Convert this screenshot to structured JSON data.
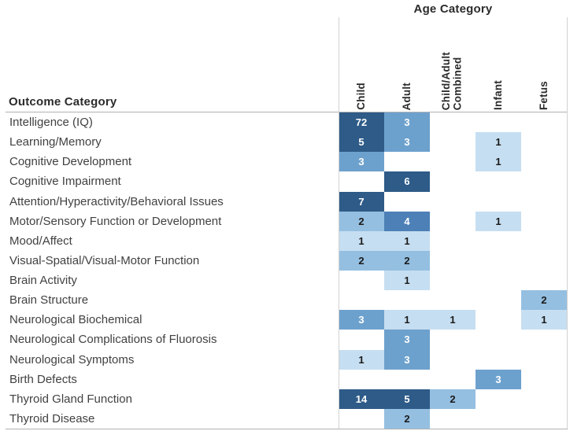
{
  "chart_data": {
    "type": "heatmap",
    "title": "Age Category",
    "row_axis_label": "Outcome Category",
    "columns": [
      "Child",
      "Adult",
      "Child/Adult\nCombined",
      "Infant",
      "Fetus"
    ],
    "rows": [
      {
        "label": "Intelligence (IQ)",
        "values": [
          72,
          3,
          null,
          null,
          null
        ]
      },
      {
        "label": "Learning/Memory",
        "values": [
          5,
          3,
          null,
          1,
          null
        ]
      },
      {
        "label": "Cognitive Development",
        "values": [
          3,
          null,
          null,
          1,
          null
        ]
      },
      {
        "label": "Cognitive Impairment",
        "values": [
          null,
          6,
          null,
          null,
          null
        ]
      },
      {
        "label": "Attention/Hyperactivity/Behavioral Issues",
        "values": [
          7,
          null,
          null,
          null,
          null
        ]
      },
      {
        "label": "Motor/Sensory Function or Development",
        "values": [
          2,
          4,
          null,
          1,
          null
        ]
      },
      {
        "label": "Mood/Affect",
        "values": [
          1,
          1,
          null,
          null,
          null
        ]
      },
      {
        "label": "Visual-Spatial/Visual-Motor Function",
        "values": [
          2,
          2,
          null,
          null,
          null
        ]
      },
      {
        "label": "Brain Activity",
        "values": [
          null,
          1,
          null,
          null,
          null
        ]
      },
      {
        "label": "Brain Structure",
        "values": [
          null,
          null,
          null,
          null,
          2
        ]
      },
      {
        "label": "Neurological Biochemical",
        "values": [
          3,
          1,
          1,
          null,
          1
        ]
      },
      {
        "label": "Neurological Complications of Fluorosis",
        "values": [
          null,
          3,
          null,
          null,
          null
        ]
      },
      {
        "label": "Neurological Symptoms",
        "values": [
          1,
          3,
          null,
          null,
          null
        ]
      },
      {
        "label": "Birth Defects",
        "values": [
          null,
          null,
          null,
          3,
          null
        ]
      },
      {
        "label": "Thyroid Gland Function",
        "values": [
          14,
          5,
          2,
          null,
          null
        ]
      },
      {
        "label": "Thyroid Disease",
        "values": [
          null,
          2,
          null,
          null,
          null
        ]
      }
    ],
    "color_scale": {
      "1": "#c6def1",
      "2": "#94bfe1",
      "3": "#6da1cd",
      "4": "#4d80b6",
      "5_plus": "#2e5b88"
    },
    "text_colors": {
      "on_light_cells": "#1a1a1a",
      "on_dark_cells": "#ffffff"
    },
    "legend_position": "none",
    "grid": "matrix borders only"
  }
}
